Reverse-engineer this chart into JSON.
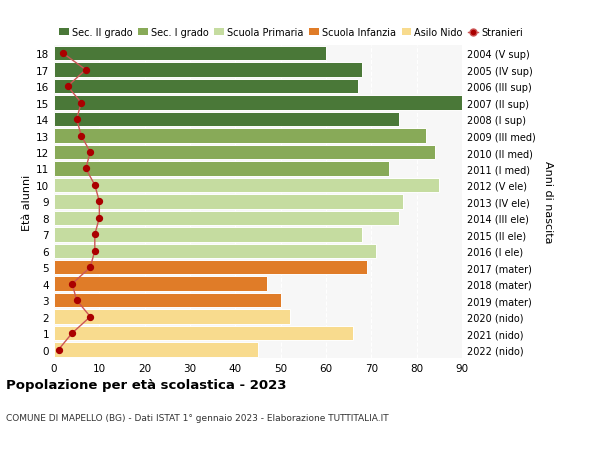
{
  "ages": [
    0,
    1,
    2,
    3,
    4,
    5,
    6,
    7,
    8,
    9,
    10,
    11,
    12,
    13,
    14,
    15,
    16,
    17,
    18
  ],
  "right_labels": [
    "2022 (nido)",
    "2021 (nido)",
    "2020 (nido)",
    "2019 (mater)",
    "2018 (mater)",
    "2017 (mater)",
    "2016 (I ele)",
    "2015 (II ele)",
    "2014 (III ele)",
    "2013 (IV ele)",
    "2012 (V ele)",
    "2011 (I med)",
    "2010 (II med)",
    "2009 (III med)",
    "2008 (I sup)",
    "2007 (II sup)",
    "2006 (III sup)",
    "2005 (IV sup)",
    "2004 (V sup)"
  ],
  "bar_values": [
    45,
    66,
    52,
    50,
    47,
    69,
    71,
    68,
    76,
    77,
    85,
    74,
    84,
    82,
    76,
    90,
    67,
    68,
    60
  ],
  "stranieri": [
    1,
    4,
    8,
    5,
    4,
    8,
    9,
    9,
    10,
    10,
    9,
    7,
    8,
    6,
    5,
    6,
    3,
    7,
    2
  ],
  "bar_colors": [
    "#f8db8e",
    "#f8db8e",
    "#f8db8e",
    "#e07c28",
    "#e07c28",
    "#e07c28",
    "#c5dca0",
    "#c5dca0",
    "#c5dca0",
    "#c5dca0",
    "#c5dca0",
    "#88aa58",
    "#88aa58",
    "#88aa58",
    "#4a7838",
    "#4a7838",
    "#4a7838",
    "#4a7838",
    "#4a7838"
  ],
  "legend_labels": [
    "Sec. II grado",
    "Sec. I grado",
    "Scuola Primaria",
    "Scuola Infanzia",
    "Asilo Nido",
    "Stranieri"
  ],
  "legend_colors": [
    "#4a7838",
    "#88aa58",
    "#c5dca0",
    "#e07c28",
    "#f8db8e",
    "#bb1111"
  ],
  "stranieri_color": "#aa0000",
  "stranieri_line_color": "#cc5555",
  "xlim": [
    0,
    90
  ],
  "xticks": [
    0,
    10,
    20,
    30,
    40,
    50,
    60,
    70,
    80,
    90
  ],
  "ylabel_left": "Età alunni",
  "ylabel_right": "Anni di nascita",
  "title": "Popolazione per età scolastica - 2023",
  "subtitle": "COMUNE DI MAPELLO (BG) - Dati ISTAT 1° gennaio 2023 - Elaborazione TUTTITALIA.IT",
  "bg_color": "#f7f7f7"
}
